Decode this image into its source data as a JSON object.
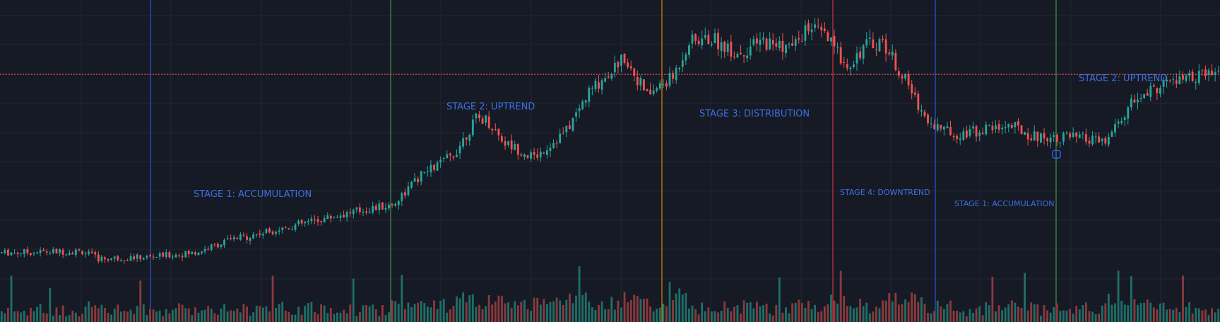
{
  "colors": {
    "background": "#161a25",
    "grid": "#232734",
    "up": "#26a69a",
    "down": "#ef5350",
    "volume_up": "#1f6f68",
    "volume_down": "#8b3a3c",
    "price_line": "#ef5350",
    "label": "#3d6fe0",
    "marker": "#2962ff"
  },
  "stages": [
    {
      "text": "STAGE 1: ACCUMULATION",
      "size": "small"
    },
    {
      "text": "STAGE 2: UPTREND",
      "size": "small"
    },
    {
      "text": "STAGE 3: DISTRIBUTION",
      "size": "small"
    },
    {
      "text": "STAGE 4: DOWNTREND",
      "size": "tiny"
    },
    {
      "text": "STAGE 1: ACCUMULATION",
      "size": "tiny"
    },
    {
      "text": "STAGE 2: UPTREND",
      "size": "small"
    }
  ],
  "dividers": [
    {
      "color": "#2962ff"
    },
    {
      "color": "#4caf50"
    },
    {
      "color": "#ff9800"
    },
    {
      "color": "#f23645"
    },
    {
      "color": "#2962ff"
    },
    {
      "color": "#4caf50"
    }
  ],
  "chart_data": {
    "type": "candlestick",
    "price_anchors": [
      [
        0,
        0.4
      ],
      [
        25,
        0.405
      ],
      [
        30,
        0.38
      ],
      [
        45,
        0.385
      ],
      [
        60,
        0.4
      ],
      [
        70,
        0.44
      ],
      [
        90,
        0.49
      ],
      [
        110,
        0.54
      ],
      [
        121,
        0.56
      ],
      [
        130,
        0.66
      ],
      [
        140,
        0.73
      ],
      [
        147,
        0.85
      ],
      [
        150,
        0.85
      ],
      [
        156,
        0.77
      ],
      [
        165,
        0.72
      ],
      [
        175,
        0.81
      ],
      [
        182,
        0.94
      ],
      [
        193,
        1.06
      ],
      [
        200,
        0.93
      ],
      [
        208,
        0.99
      ],
      [
        213,
        1.11
      ],
      [
        220,
        1.12
      ],
      [
        228,
        1.07
      ],
      [
        236,
        1.11
      ],
      [
        245,
        1.09
      ],
      [
        250,
        1.16
      ],
      [
        255,
        1.13
      ],
      [
        262,
        1.03
      ],
      [
        268,
        1.1
      ],
      [
        273,
        1.11
      ],
      [
        280,
        0.98
      ],
      [
        287,
        0.84
      ],
      [
        295,
        0.8
      ],
      [
        302,
        0.81
      ],
      [
        312,
        0.83
      ],
      [
        320,
        0.79
      ],
      [
        330,
        0.79
      ],
      [
        342,
        0.77
      ],
      [
        350,
        0.9
      ],
      [
        360,
        0.97
      ],
      [
        370,
        0.99
      ],
      [
        378,
        1.0
      ]
    ],
    "candle_count": 378,
    "volume_level": "low, spikes near stage transitions",
    "reference_price_level": 1.0,
    "ylim": [
      0.3,
      1.25
    ],
    "grid": true
  }
}
